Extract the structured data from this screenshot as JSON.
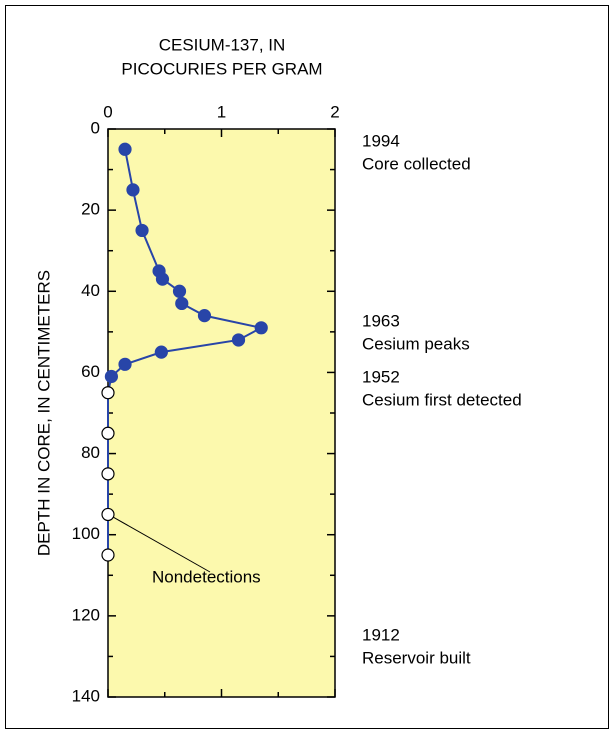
{
  "chart_data": {
    "type": "depth-profile",
    "title": [
      "CESIUM-137, IN",
      "PICOCURIES PER GRAM"
    ],
    "y_label": "DEPTH IN CORE, IN CENTIMETERS",
    "xlim": [
      0,
      2
    ],
    "xticks": [
      0,
      1,
      2
    ],
    "xminor": [
      0.5,
      1.5
    ],
    "ylim": [
      0,
      140
    ],
    "yticks": [
      0,
      20,
      40,
      60,
      80,
      100,
      120,
      140
    ],
    "yminor": [
      10,
      30,
      50,
      70,
      90,
      110,
      130
    ],
    "y_inverted": true,
    "background": "#fcf9ad",
    "line_color": "#2845a8",
    "series": [
      {
        "marker": "filled",
        "color": "#2845a8",
        "x": [
          0.15,
          0.22,
          0.3,
          0.45,
          0.48,
          0.63,
          0.65,
          0.85,
          1.35,
          1.15,
          0.47,
          0.15,
          0.03
        ],
        "values": [
          5,
          15,
          25,
          35,
          37,
          40,
          43,
          46,
          49,
          52,
          55,
          58,
          61
        ]
      },
      {
        "marker": "open",
        "color": "#2845a8",
        "x": [
          0,
          0,
          0,
          0,
          0
        ],
        "values": [
          65,
          75,
          85,
          95,
          105
        ]
      }
    ],
    "annotations": [
      {
        "lines": [
          "1994",
          "Core collected"
        ]
      },
      {
        "lines": [
          "1963",
          "Cesium peaks"
        ]
      },
      {
        "lines": [
          "1952",
          "Cesium first detected"
        ]
      },
      {
        "lines": [
          "1912",
          "Reservoir built"
        ]
      },
      {
        "lines": [
          "Nondetections"
        ]
      }
    ]
  }
}
